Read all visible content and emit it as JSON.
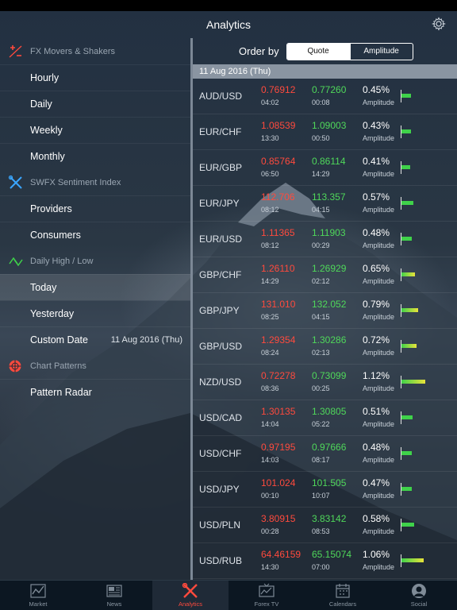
{
  "header": {
    "title": "Analytics"
  },
  "sidebar": {
    "sections": [
      {
        "label": "FX Movers & Shakers",
        "icon": "plus-minus-icon",
        "items": [
          {
            "label": "Hourly"
          },
          {
            "label": "Daily"
          },
          {
            "label": "Weekly"
          },
          {
            "label": "Monthly"
          }
        ]
      },
      {
        "label": "SWFX Sentiment Index",
        "icon": "tools-icon",
        "items": [
          {
            "label": "Providers"
          },
          {
            "label": "Consumers"
          }
        ]
      },
      {
        "label": "Daily High / Low",
        "icon": "up-down-arrows-icon",
        "items": [
          {
            "label": "Today"
          },
          {
            "label": "Yesterday"
          },
          {
            "label": "Custom Date",
            "value": "11 Aug 2016 (Thu)"
          }
        ]
      },
      {
        "label": "Chart Patterns",
        "icon": "radar-icon",
        "items": [
          {
            "label": "Pattern Radar"
          }
        ]
      }
    ],
    "active_item": "Today"
  },
  "order": {
    "label": "Order by",
    "options": [
      "Quote",
      "Amplitude"
    ],
    "selected": "Quote"
  },
  "date_header": "11 Aug 2016 (Thu)",
  "amplitude_label": "Amplitude",
  "colors": {
    "low": "#ff4a3d",
    "high": "#4fd85a",
    "bar_green": "#3fd24a",
    "bar_yellow": "#e8e23a"
  },
  "rows": [
    {
      "pair": "AUD/USD",
      "low": "0.76912",
      "low_time": "04:02",
      "high": "0.77260",
      "high_time": "00:08",
      "amplitude": "0.45%",
      "amp_value": 0.45
    },
    {
      "pair": "EUR/CHF",
      "low": "1.08539",
      "low_time": "13:30",
      "high": "1.09003",
      "high_time": "00:50",
      "amplitude": "0.43%",
      "amp_value": 0.43
    },
    {
      "pair": "EUR/GBP",
      "low": "0.85764",
      "low_time": "06:50",
      "high": "0.86114",
      "high_time": "14:29",
      "amplitude": "0.41%",
      "amp_value": 0.41
    },
    {
      "pair": "EUR/JPY",
      "low": "112.706",
      "low_time": "08:12",
      "high": "113.357",
      "high_time": "04:15",
      "amplitude": "0.57%",
      "amp_value": 0.57
    },
    {
      "pair": "EUR/USD",
      "low": "1.11365",
      "low_time": "08:12",
      "high": "1.11903",
      "high_time": "00:29",
      "amplitude": "0.48%",
      "amp_value": 0.48
    },
    {
      "pair": "GBP/CHF",
      "low": "1.26110",
      "low_time": "14:29",
      "high": "1.26929",
      "high_time": "02:12",
      "amplitude": "0.65%",
      "amp_value": 0.65
    },
    {
      "pair": "GBP/JPY",
      "low": "131.010",
      "low_time": "08:25",
      "high": "132.052",
      "high_time": "04:15",
      "amplitude": "0.79%",
      "amp_value": 0.79
    },
    {
      "pair": "GBP/USD",
      "low": "1.29354",
      "low_time": "08:24",
      "high": "1.30286",
      "high_time": "02:13",
      "amplitude": "0.72%",
      "amp_value": 0.72
    },
    {
      "pair": "NZD/USD",
      "low": "0.72278",
      "low_time": "08:36",
      "high": "0.73099",
      "high_time": "00:25",
      "amplitude": "1.12%",
      "amp_value": 1.12
    },
    {
      "pair": "USD/CAD",
      "low": "1.30135",
      "low_time": "14:04",
      "high": "1.30805",
      "high_time": "05:22",
      "amplitude": "0.51%",
      "amp_value": 0.51
    },
    {
      "pair": "USD/CHF",
      "low": "0.97195",
      "low_time": "14:03",
      "high": "0.97666",
      "high_time": "08:17",
      "amplitude": "0.48%",
      "amp_value": 0.48
    },
    {
      "pair": "USD/JPY",
      "low": "101.024",
      "low_time": "00:10",
      "high": "101.505",
      "high_time": "10:07",
      "amplitude": "0.47%",
      "amp_value": 0.47
    },
    {
      "pair": "USD/PLN",
      "low": "3.80915",
      "low_time": "00:28",
      "high": "3.83142",
      "high_time": "08:53",
      "amplitude": "0.58%",
      "amp_value": 0.58
    },
    {
      "pair": "USD/RUB",
      "low": "64.46159",
      "low_time": "14:30",
      "high": "65.15074",
      "high_time": "07:00",
      "amplitude": "1.06%",
      "amp_value": 1.06
    }
  ],
  "tabs": [
    {
      "label": "Market",
      "icon": "chart-icon"
    },
    {
      "label": "News",
      "icon": "newspaper-icon"
    },
    {
      "label": "Analytics",
      "icon": "tools-icon"
    },
    {
      "label": "Forex TV",
      "icon": "tv-icon"
    },
    {
      "label": "Calendars",
      "icon": "calendar-icon"
    },
    {
      "label": "Social",
      "icon": "person-icon"
    }
  ],
  "active_tab": "Analytics"
}
